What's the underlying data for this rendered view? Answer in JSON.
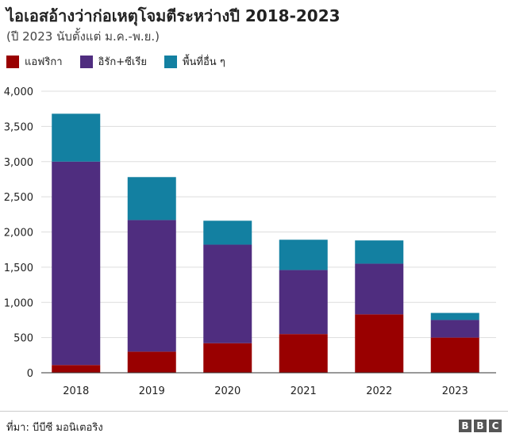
{
  "header": {
    "title": "ไอเอสอ้างว่าก่อเหตุโจมตีระหว่างปี 2018-2023",
    "subtitle": "(ปี 2023 นับตั้งแต่ ม.ค.-พ.ย.)"
  },
  "footer": {
    "source": "ที่มา: บีบีซี มอนิเตอริง",
    "logo_letters": [
      "B",
      "B",
      "C"
    ]
  },
  "colors": {
    "africa": "#990000",
    "iraq_syria": "#4f2d7f",
    "other": "#1380a1"
  },
  "chart_data": {
    "type": "bar",
    "stacked": true,
    "categories": [
      "2018",
      "2019",
      "2020",
      "2021",
      "2022",
      "2023"
    ],
    "series": [
      {
        "name": "แอฟริกา",
        "color": "#990000",
        "values": [
          110,
          300,
          420,
          550,
          830,
          500
        ]
      },
      {
        "name": "อิรัก+ซีเรีย",
        "color": "#4f2d7f",
        "values": [
          2890,
          1870,
          1400,
          910,
          720,
          250
        ]
      },
      {
        "name": "พื้นที่อื่น ๆ",
        "color": "#1380a1",
        "values": [
          680,
          610,
          340,
          430,
          330,
          100
        ]
      }
    ],
    "ylim": [
      0,
      4000
    ],
    "yticks": [
      0,
      500,
      1000,
      1500,
      2000,
      2500,
      3000,
      3500,
      4000
    ],
    "ytick_labels": [
      "0",
      "500",
      "1,000",
      "1,500",
      "2,000",
      "2,500",
      "3,000",
      "3,500",
      "4,000"
    ],
    "grid": true,
    "legend_position": "top-left"
  }
}
